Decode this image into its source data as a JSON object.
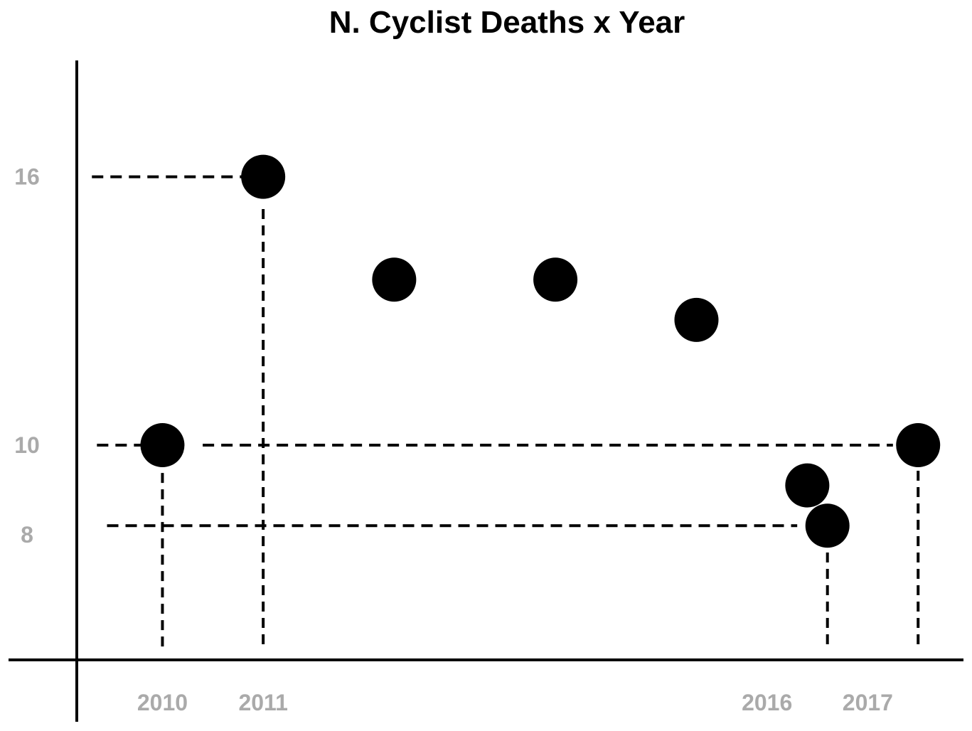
{
  "colors": {
    "ink": "#000000",
    "tick_label": "#aaaaaa",
    "background": "#ffffff"
  },
  "chart_data": {
    "type": "scatter",
    "title": "N. Cyclist Deaths x Year",
    "xlabel": "",
    "ylabel": "",
    "xlim": [
      2009.15,
      2017.95
    ],
    "ylim": [
      5.2,
      18.6
    ],
    "x_ticks": [
      2010,
      2011,
      2016,
      2017
    ],
    "y_ticks": [
      16,
      10,
      8
    ],
    "grid": false,
    "legend": "none",
    "points": [
      {
        "x": 2010,
        "y": 10
      },
      {
        "x": 2011,
        "y": 16
      },
      {
        "x": 2012.3,
        "y": 13.7
      },
      {
        "x": 2013.9,
        "y": 13.7
      },
      {
        "x": 2015.3,
        "y": 12.8
      },
      {
        "x": 2016.4,
        "y": 9.1
      },
      {
        "x": 2016.6,
        "y": 8.2
      },
      {
        "x": 2017.5,
        "y": 10
      }
    ],
    "reference_lines": [
      {
        "orientation": "horizontal",
        "y": 16,
        "x_from": 2009.3,
        "x_to": 2010.9
      },
      {
        "orientation": "horizontal",
        "y": 10,
        "x_from": 2009.35,
        "x_to": 2009.85
      },
      {
        "orientation": "horizontal",
        "y": 10,
        "x_from": 2010.4,
        "x_to": 2017.25
      },
      {
        "orientation": "horizontal",
        "y": 8.2,
        "x_from": 2009.45,
        "x_to": 2016.3
      },
      {
        "orientation": "vertical",
        "x": 2010,
        "y_from": 5.5,
        "y_to": 9.45
      },
      {
        "orientation": "vertical",
        "x": 2011,
        "y_from": 5.55,
        "y_to": 15.3
      },
      {
        "orientation": "vertical",
        "x": 2016.6,
        "y_from": 5.55,
        "y_to": 7.6
      },
      {
        "orientation": "vertical",
        "x": 2017.5,
        "y_from": 5.55,
        "y_to": 9.5
      }
    ]
  }
}
